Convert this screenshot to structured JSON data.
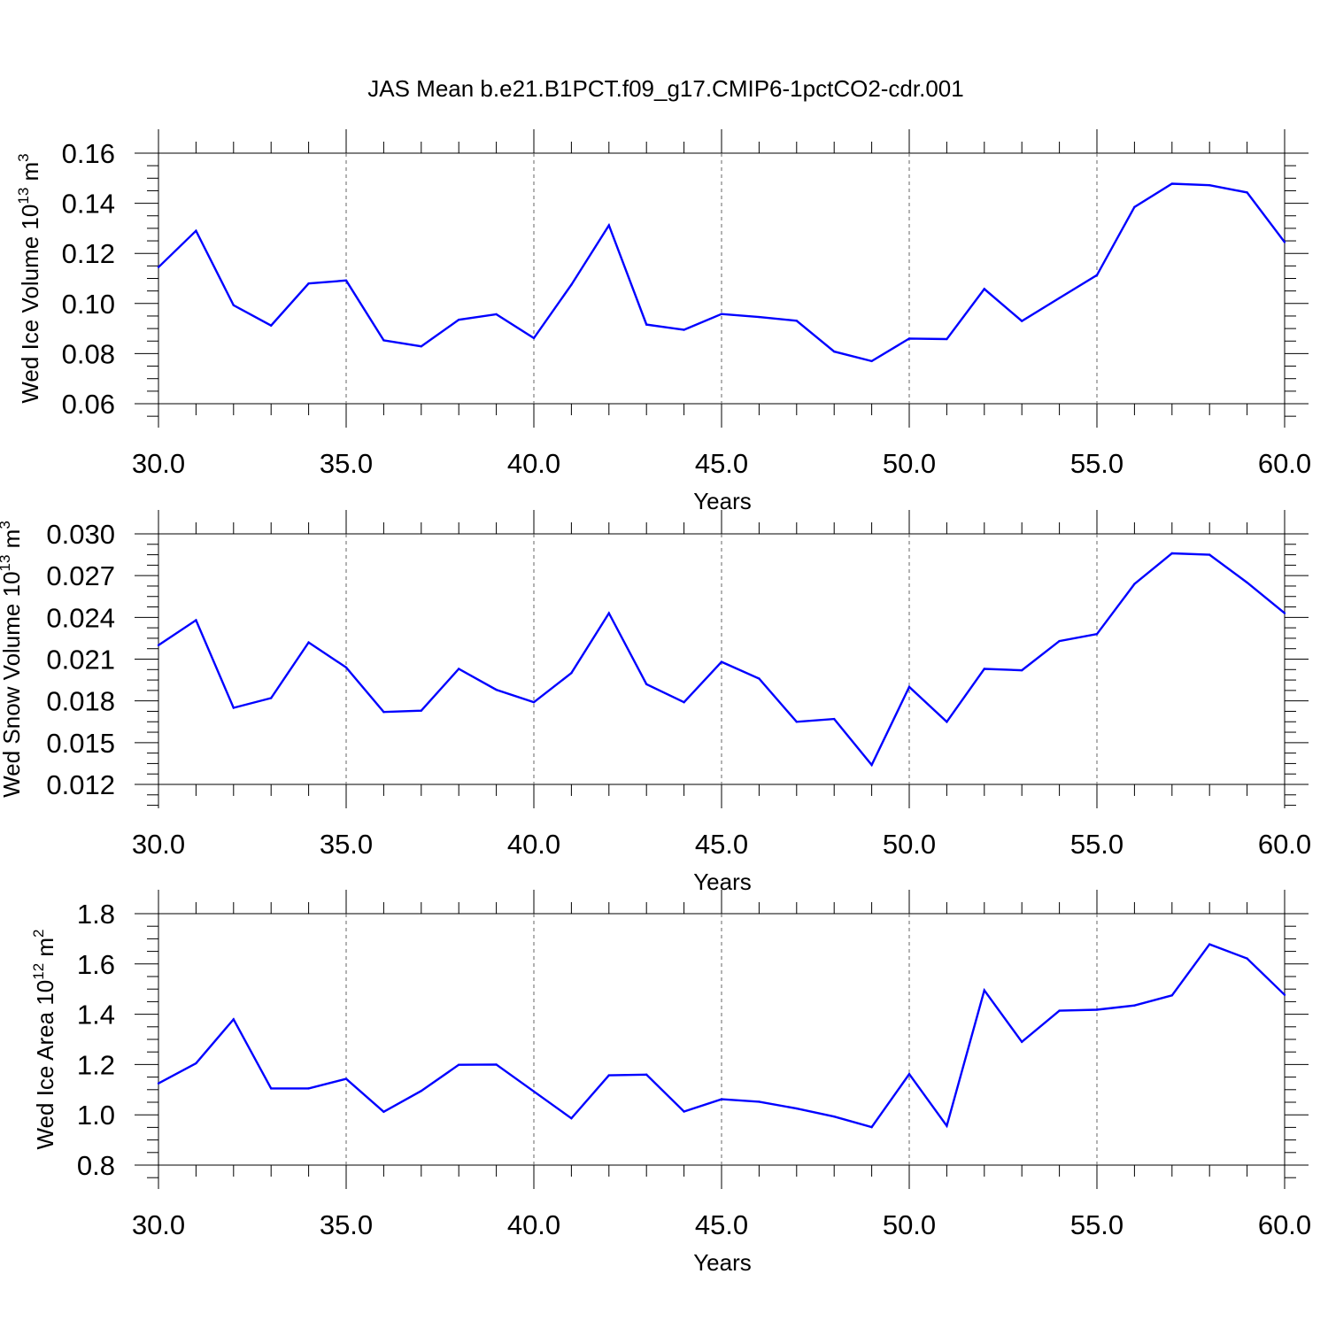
{
  "title": "JAS Mean b.e21.B1PCT.f09_g17.CMIP6-1pctCO2-cdr.001",
  "colors": {
    "line": "#0000ff",
    "axis": "#000000",
    "grid": "#666666"
  },
  "chart_data": [
    {
      "type": "line",
      "xlabel": "Years",
      "ylabel": "Wed Ice Volume 10",
      "ylabel_exp": "13",
      "ylabel_unit": " m",
      "ylabel_unit_exp": "3",
      "xlim": [
        30,
        60
      ],
      "ylim": [
        0.06,
        0.16
      ],
      "xticks": [
        "30.0",
        "35.0",
        "40.0",
        "45.0",
        "50.0",
        "55.0",
        "60.0"
      ],
      "yticks": [
        "0.06",
        "0.08",
        "0.10",
        "0.12",
        "0.14",
        "0.16"
      ],
      "grid": "vertical dashed at major x ticks",
      "series": [
        {
          "x": [
            30,
            31,
            32,
            33,
            34,
            35,
            36,
            37,
            38,
            39,
            40,
            41,
            42,
            43,
            44,
            45,
            46,
            47,
            48,
            49,
            50,
            51,
            52,
            53,
            54,
            55,
            56,
            57,
            58,
            59,
            60
          ],
          "values": [
            0.1145,
            0.129,
            0.0993,
            0.0912,
            0.108,
            0.1092,
            0.0853,
            0.0829,
            0.0935,
            0.0957,
            0.0862,
            0.1075,
            0.1312,
            0.0916,
            0.0895,
            0.0958,
            0.0946,
            0.0931,
            0.0808,
            0.077,
            0.086,
            0.0858,
            0.1058,
            0.093,
            0.1022,
            0.1113,
            0.1385,
            0.1478,
            0.1472,
            0.1443,
            0.1245
          ]
        }
      ]
    },
    {
      "type": "line",
      "xlabel": "Years",
      "ylabel": "Wed Snow Volume 10",
      "ylabel_exp": "13",
      "ylabel_unit": " m",
      "ylabel_unit_exp": "3",
      "xlim": [
        30,
        60
      ],
      "ylim": [
        0.012,
        0.03
      ],
      "xticks": [
        "30.0",
        "35.0",
        "40.0",
        "45.0",
        "50.0",
        "55.0",
        "60.0"
      ],
      "yticks": [
        "0.012",
        "0.015",
        "0.018",
        "0.021",
        "0.024",
        "0.027",
        "0.030"
      ],
      "grid": "vertical dashed at major x ticks",
      "series": [
        {
          "x": [
            30,
            31,
            32,
            33,
            34,
            35,
            36,
            37,
            38,
            39,
            40,
            41,
            42,
            43,
            44,
            45,
            46,
            47,
            48,
            49,
            50,
            51,
            52,
            53,
            54,
            55,
            56,
            57,
            58,
            59,
            60
          ],
          "values": [
            0.022,
            0.0238,
            0.0175,
            0.0182,
            0.0222,
            0.0204,
            0.0172,
            0.0173,
            0.0203,
            0.0188,
            0.0179,
            0.02,
            0.0243,
            0.0192,
            0.0179,
            0.0208,
            0.0196,
            0.0165,
            0.0167,
            0.0134,
            0.019,
            0.0165,
            0.0203,
            0.0202,
            0.0223,
            0.0228,
            0.0264,
            0.0286,
            0.0285,
            0.0265,
            0.0243
          ]
        }
      ]
    },
    {
      "type": "line",
      "xlabel": "Years",
      "ylabel": "Wed Ice Area 10",
      "ylabel_exp": "12",
      "ylabel_unit": " m",
      "ylabel_unit_exp": "2",
      "xlim": [
        30,
        60
      ],
      "ylim": [
        0.8,
        1.8
      ],
      "xticks": [
        "30.0",
        "35.0",
        "40.0",
        "45.0",
        "50.0",
        "55.0",
        "60.0"
      ],
      "yticks": [
        "0.8",
        "1.0",
        "1.2",
        "1.4",
        "1.6",
        "1.8"
      ],
      "grid": "vertical dashed at major x ticks",
      "series": [
        {
          "x": [
            30,
            31,
            32,
            33,
            34,
            35,
            36,
            37,
            38,
            39,
            40,
            41,
            42,
            43,
            44,
            45,
            46,
            47,
            48,
            49,
            50,
            51,
            52,
            53,
            54,
            55,
            56,
            57,
            58,
            59,
            60
          ],
          "values": [
            1.125,
            1.205,
            1.38,
            1.105,
            1.105,
            1.143,
            1.012,
            1.095,
            1.199,
            1.2,
            1.093,
            0.986,
            1.157,
            1.16,
            1.013,
            1.062,
            1.052,
            1.025,
            0.993,
            0.951,
            1.162,
            0.956,
            1.495,
            1.29,
            1.414,
            1.418,
            1.435,
            1.475,
            1.678,
            1.622,
            1.477
          ]
        }
      ]
    }
  ]
}
